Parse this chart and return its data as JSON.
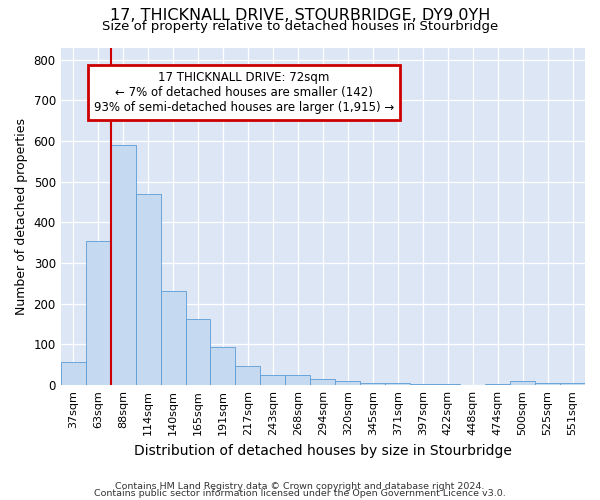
{
  "title": "17, THICKNALL DRIVE, STOURBRIDGE, DY9 0YH",
  "subtitle": "Size of property relative to detached houses in Stourbridge",
  "xlabel": "Distribution of detached houses by size in Stourbridge",
  "ylabel": "Number of detached properties",
  "bins": [
    "37sqm",
    "63sqm",
    "88sqm",
    "114sqm",
    "140sqm",
    "165sqm",
    "191sqm",
    "217sqm",
    "243sqm",
    "268sqm",
    "294sqm",
    "320sqm",
    "345sqm",
    "371sqm",
    "397sqm",
    "422sqm",
    "448sqm",
    "474sqm",
    "500sqm",
    "525sqm",
    "551sqm"
  ],
  "values": [
    57,
    355,
    590,
    470,
    232,
    163,
    95,
    48,
    25,
    25,
    15,
    10,
    5,
    5,
    3,
    2,
    0,
    2,
    10,
    5,
    5
  ],
  "bar_color": "#c5d9f0",
  "bar_edge_color": "#5b9bd5",
  "plot_bg_color": "#dce6f4",
  "grid_color": "#ffffff",
  "annotation_line1": "17 THICKNALL DRIVE: 72sqm",
  "annotation_line2": "← 7% of detached houses are smaller (142)",
  "annotation_line3": "93% of semi-detached houses are larger (1,915) →",
  "annotation_box_color": "#ffffff",
  "annotation_box_edge": "#cc0000",
  "property_line_color": "#cc0000",
  "property_line_bin_index": 1,
  "ylim": [
    0,
    830
  ],
  "yticks": [
    0,
    100,
    200,
    300,
    400,
    500,
    600,
    700,
    800
  ],
  "footer1": "Contains HM Land Registry data © Crown copyright and database right 2024.",
  "footer2": "Contains public sector information licensed under the Open Government Licence v3.0."
}
